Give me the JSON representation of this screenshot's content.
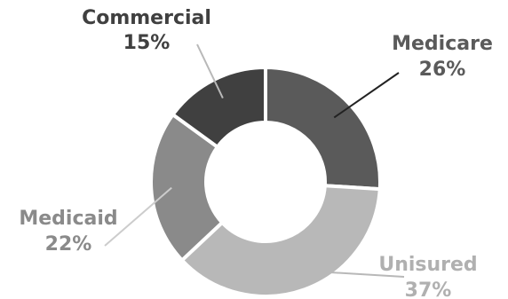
{
  "chart_data": {
    "type": "pie",
    "title": "",
    "categories": [
      "Medicare",
      "Unisured",
      "Medicaid",
      "Commercial"
    ],
    "values": [
      26,
      37,
      22,
      15
    ],
    "value_labels": [
      "26%",
      "37%",
      "22%",
      "15%"
    ],
    "donut": true,
    "colors": [
      "#5a5a5a",
      "#b8b8b8",
      "#8a8a8a",
      "#404040"
    ],
    "label_colors": [
      "#5a5a5a",
      "#b0b0b0",
      "#8a8a8a",
      "#404040"
    ],
    "leader_colors": [
      "#222222",
      "#b8b8b8",
      "#cccccc",
      "#b8b8b8"
    ],
    "legend": "none"
  }
}
